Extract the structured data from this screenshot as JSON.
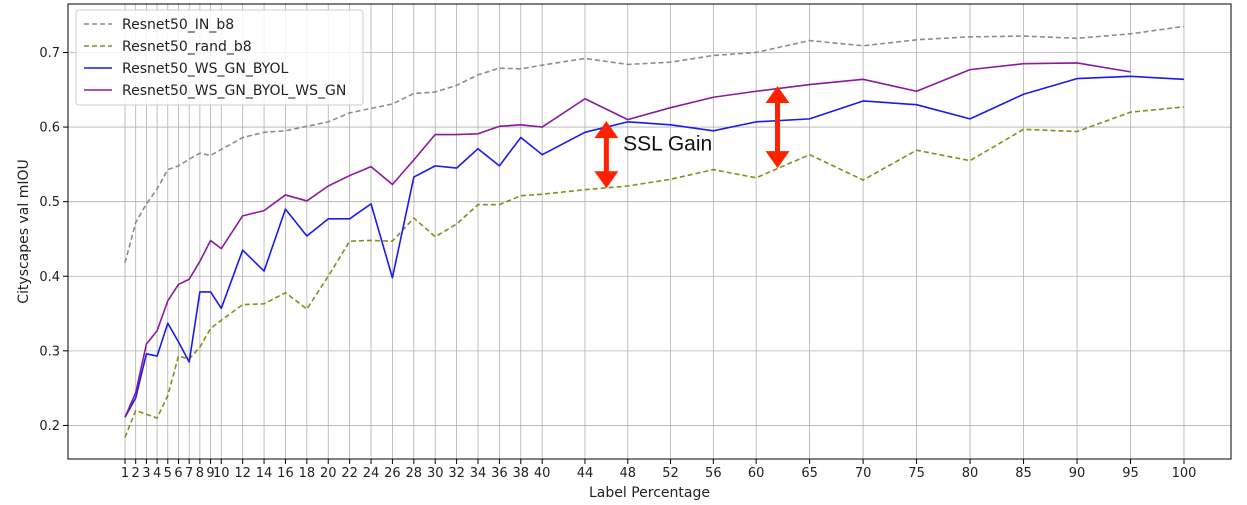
{
  "chart_data": {
    "type": "line",
    "xlabel": "Label Percentage",
    "ylabel": "Cityscapes val mIOU",
    "x": [
      1,
      2,
      3,
      4,
      5,
      6,
      7,
      8,
      9,
      10,
      12,
      14,
      16,
      18,
      20,
      22,
      24,
      26,
      28,
      30,
      32,
      34,
      36,
      38,
      40,
      44,
      48,
      52,
      56,
      60,
      65,
      70,
      75,
      80,
      85,
      90,
      95,
      100
    ],
    "xticks": [
      "1",
      "2",
      "3",
      "4",
      "5",
      "6",
      "7",
      "8",
      "9",
      "10",
      "12",
      "14",
      "16",
      "18",
      "20",
      "22",
      "24",
      "26",
      "28",
      "30",
      "32",
      "34",
      "36",
      "38",
      "40",
      "44",
      "48",
      "52",
      "56",
      "60",
      "65",
      "70",
      "75",
      "80",
      "85",
      "90",
      "95",
      "100"
    ],
    "yticks": [
      0.2,
      0.3,
      0.4,
      0.5,
      0.6,
      0.7
    ],
    "ylim": [
      0.155,
      0.765
    ],
    "grid": true,
    "legend": "top-left",
    "series": [
      {
        "name": "Resnet50_IN_b8",
        "color": "#8c8c8c",
        "style": "dashed",
        "values": [
          0.418,
          0.472,
          0.497,
          0.517,
          0.543,
          0.548,
          0.557,
          0.565,
          0.562,
          0.57,
          0.586,
          0.593,
          0.595,
          0.601,
          0.607,
          0.619,
          0.625,
          0.631,
          0.645,
          0.647,
          0.656,
          0.67,
          0.679,
          0.678,
          0.683,
          0.692,
          0.684,
          0.687,
          0.696,
          0.7,
          0.716,
          0.709,
          0.717,
          0.721,
          0.722,
          0.719,
          0.725,
          0.735
        ]
      },
      {
        "name": "Resnet50_rand_b8",
        "color": "#8b8b1a",
        "style": "dashed",
        "values": [
          0.184,
          0.22,
          0.215,
          0.21,
          0.24,
          0.293,
          0.289,
          0.305,
          0.33,
          0.341,
          0.362,
          0.363,
          0.378,
          0.356,
          0.4,
          0.447,
          0.448,
          0.447,
          0.478,
          0.453,
          0.47,
          0.496,
          0.496,
          0.508,
          0.51,
          0.516,
          0.521,
          0.53,
          0.543,
          0.532,
          0.563,
          0.529,
          0.569,
          0.555,
          0.597,
          0.594,
          0.62,
          0.627
        ]
      },
      {
        "name": "Resnet50_WS_GN_BYOL",
        "color": "#1a1aee",
        "style": "solid",
        "values": [
          0.211,
          0.237,
          0.296,
          0.293,
          0.337,
          0.312,
          0.285,
          0.379,
          0.379,
          0.357,
          0.435,
          0.407,
          0.49,
          0.454,
          0.477,
          0.477,
          0.497,
          0.398,
          0.533,
          0.548,
          0.545,
          0.571,
          0.548,
          0.586,
          0.563,
          0.593,
          0.607,
          0.603,
          0.595,
          0.607,
          0.611,
          0.635,
          0.63,
          0.611,
          0.644,
          0.665,
          0.668,
          0.664
        ]
      },
      {
        "name": "Resnet50_WS_GN_BYOL_WS_GN",
        "color": "#8b1a9b",
        "style": "solid",
        "values": [
          0.211,
          0.244,
          0.309,
          0.327,
          0.367,
          0.389,
          0.396,
          0.42,
          0.448,
          0.437,
          0.481,
          0.488,
          0.509,
          0.501,
          0.521,
          0.535,
          0.547,
          0.523,
          0.556,
          0.59,
          0.59,
          0.591,
          0.601,
          0.603,
          0.6,
          0.638,
          0.61,
          0.626,
          0.64,
          0.648,
          0.657,
          0.664,
          0.648,
          0.677,
          0.685,
          0.686,
          0.674,
          null
        ]
      }
    ],
    "annotations": [
      {
        "text": "SSL Gain",
        "x": 48.5,
        "y": 0.578
      },
      {
        "type": "double-arrow",
        "color": "#ff2200",
        "x": 46,
        "y_from": 0.518,
        "y_to": 0.608
      },
      {
        "type": "double-arrow",
        "color": "#ff2200",
        "x": 62,
        "y_from": 0.545,
        "y_to": 0.655
      }
    ]
  }
}
